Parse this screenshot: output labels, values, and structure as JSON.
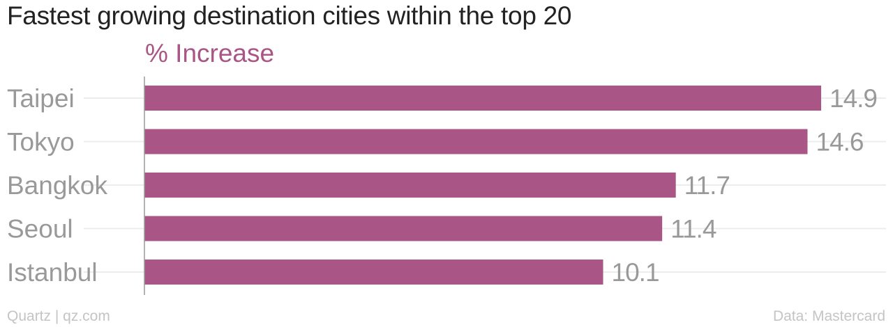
{
  "chart_data": {
    "type": "bar",
    "orientation": "horizontal",
    "title": "Fastest growing destination cities within the top 20",
    "series_label": "% Increase",
    "categories": [
      "Taipei",
      "Tokyo",
      "Bangkok",
      "Seoul",
      "Istanbul"
    ],
    "values": [
      14.9,
      14.6,
      11.7,
      11.4,
      10.1
    ],
    "value_labels": [
      "14.9",
      "14.6",
      "11.7",
      "11.4",
      "10.1"
    ],
    "xlim": [
      0,
      14.9
    ],
    "grid": true,
    "colors": {
      "bar": "#a95686",
      "category_text": "#999999",
      "value_text": "#999999",
      "grid": "#ececec",
      "axis": "#999999"
    }
  },
  "footer": {
    "source_left": "Quartz | qz.com",
    "source_right": "Data: Mastercard"
  }
}
